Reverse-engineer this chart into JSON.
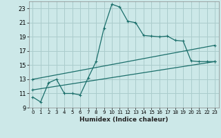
{
  "xlabel": "Humidex (Indice chaleur)",
  "bg_color": "#cce8e8",
  "grid_color": "#aacccc",
  "line_color": "#1a6e6a",
  "xlim": [
    -0.5,
    23.5
  ],
  "ylim": [
    9,
    24
  ],
  "xticks": [
    0,
    1,
    2,
    3,
    4,
    5,
    6,
    7,
    8,
    9,
    10,
    11,
    12,
    13,
    14,
    15,
    16,
    17,
    18,
    19,
    20,
    21,
    22,
    23
  ],
  "yticks": [
    9,
    11,
    13,
    15,
    17,
    19,
    21,
    23
  ],
  "series1_x": [
    0,
    1,
    2,
    3,
    4,
    5,
    6,
    7,
    8,
    9,
    10,
    11,
    12,
    13,
    14,
    15,
    16,
    17,
    18,
    19,
    20,
    21,
    22,
    23
  ],
  "series1_y": [
    10.5,
    9.8,
    12.5,
    13.0,
    11.0,
    11.0,
    10.8,
    13.2,
    15.5,
    20.2,
    23.6,
    23.2,
    21.2,
    21.0,
    19.2,
    19.1,
    19.0,
    19.1,
    18.5,
    18.4,
    15.6,
    15.5,
    15.5,
    15.5
  ],
  "series2_x": [
    0,
    23
  ],
  "series2_y": [
    13.0,
    17.8
  ],
  "series3_x": [
    0,
    23
  ],
  "series3_y": [
    11.5,
    15.5
  ]
}
